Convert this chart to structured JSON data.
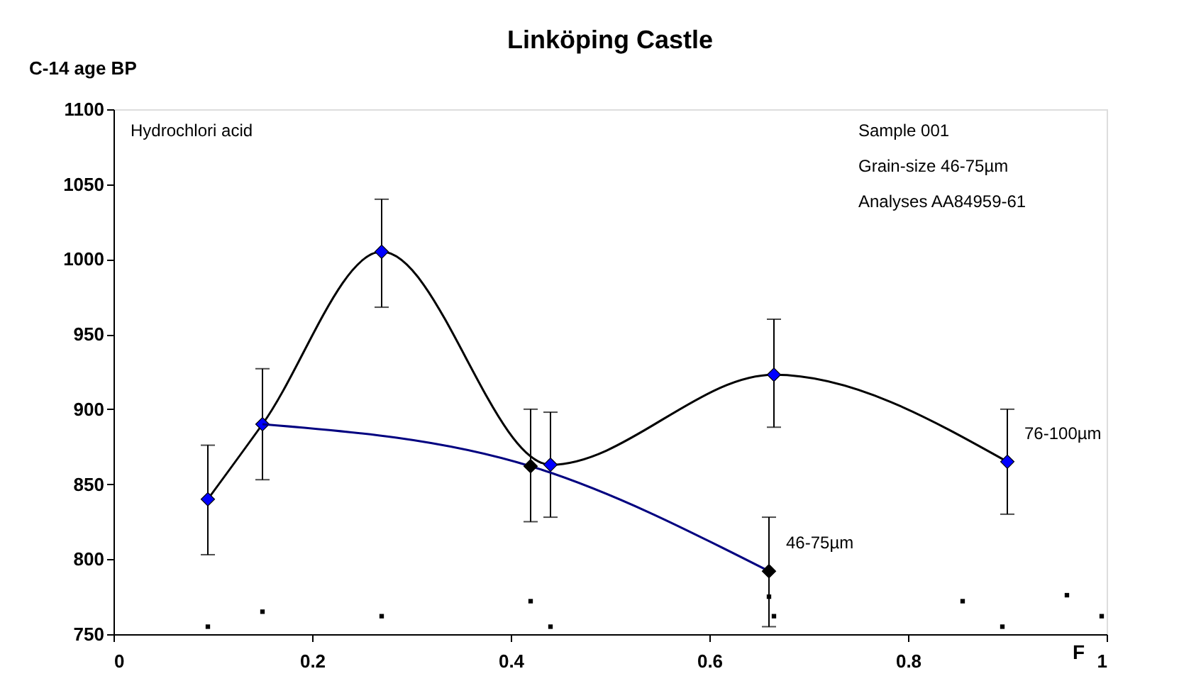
{
  "chart_data": {
    "type": "line",
    "title": "Linköping Castle",
    "ylabel": "C-14 age BP",
    "xlabel": "F",
    "xlim": [
      0,
      1
    ],
    "xticks": [
      0,
      0.2,
      0.4,
      0.6,
      0.8,
      1
    ],
    "ylim": [
      750,
      1100
    ],
    "yticks": [
      750,
      800,
      850,
      900,
      950,
      1000,
      1050,
      1100
    ],
    "grid": false,
    "series": [
      {
        "name": "76-100µm",
        "color": "#000000",
        "x": [
          0.095,
          0.15,
          0.27,
          0.44,
          0.665,
          0.9
        ],
        "values": [
          840,
          890,
          1005,
          863,
          923,
          865
        ]
      },
      {
        "type": "scatter",
        "color": "#0000ff",
        "marker": "diamond",
        "x": [
          0.095,
          0.15,
          0.27,
          0.44,
          0.665,
          0.9
        ],
        "values": [
          840,
          890,
          1005,
          863,
          923,
          865
        ],
        "errors": [
          [
            803,
            876
          ],
          [
            853,
            927
          ],
          [
            968,
            1040
          ],
          [
            828,
            898
          ],
          [
            888,
            960
          ],
          [
            830,
            900
          ]
        ]
      },
      {
        "name": "46-75µm",
        "color": "#000080",
        "x": [
          0.15,
          0.42,
          0.66
        ],
        "values": [
          890,
          862,
          792
        ]
      },
      {
        "type": "scatter",
        "color": "#000000",
        "marker": "diamond",
        "x": [
          0.42,
          0.66
        ],
        "values": [
          862,
          792
        ],
        "errors": [
          [
            825,
            900
          ],
          [
            755,
            828
          ]
        ]
      },
      {
        "type": "scatter",
        "color": "#000000",
        "marker": "square",
        "x": [
          0.095,
          0.15,
          0.27,
          0.42,
          0.44,
          0.66,
          0.665,
          0.855,
          0.895,
          0.96,
          0.995
        ],
        "values": [
          755,
          765,
          762,
          772,
          755,
          775,
          762,
          772,
          755,
          776,
          762
        ]
      }
    ],
    "annotations": [
      "Hydrochlori acid",
      "Sample 001",
      "Grain-size 46-75µm",
      "Analyses AA84959-61"
    ]
  }
}
